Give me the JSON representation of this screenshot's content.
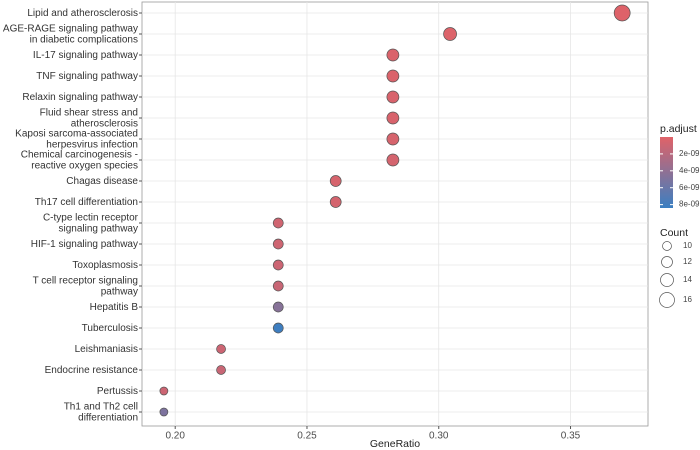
{
  "chart_data": {
    "type": "dot",
    "x_label": "GeneRatio",
    "categories": [
      "Lipid and atherosclerosis",
      "AGE-RAGE signaling pathway\nin diabetic complications",
      "IL-17 signaling pathway",
      "TNF signaling pathway",
      "Relaxin signaling pathway",
      "Fluid shear stress and\natherosclerosis",
      "Kaposi sarcoma-associated\nherpesvirus infection",
      "Chemical carcinogenesis -\nreactive oxygen species",
      "Chagas disease",
      "Th17 cell differentiation",
      "C-type lectin receptor\nsignaling pathway",
      "HIF-1 signaling pathway",
      "Toxoplasmosis",
      "T cell receptor signaling\npathway",
      "Hepatitis B",
      "Tuberculosis",
      "Leishmaniasis",
      "Endocrine resistance",
      "Pertussis",
      "Th1 and Th2 cell\ndifferentiation"
    ],
    "values": [
      0.3696,
      0.3043,
      0.2826,
      0.2826,
      0.2826,
      0.2826,
      0.2826,
      0.2826,
      0.2609,
      0.2609,
      0.2391,
      0.2391,
      0.2391,
      0.2391,
      0.2391,
      0.2391,
      0.2174,
      0.2174,
      0.1957,
      0.1957
    ],
    "count": [
      17,
      14,
      13,
      13,
      13,
      13,
      13,
      13,
      12,
      12,
      11,
      11,
      11,
      11,
      11,
      11,
      10,
      10,
      9,
      9
    ],
    "p_adjust": [
      1e-10,
      2e-10,
      3e-10,
      3e-10,
      4e-10,
      4e-10,
      5e-10,
      6e-10,
      5e-10,
      6e-10,
      8e-10,
      9e-10,
      1e-09,
      1.2e-09,
      4.5e-09,
      8.2e-09,
      1e-09,
      1.2e-09,
      1e-09,
      5e-09
    ],
    "xlim": [
      0.1874,
      0.3794
    ],
    "xticks": [
      {
        "value": 0.2,
        "label": "0.20"
      },
      {
        "value": 0.25,
        "label": "0.25"
      },
      {
        "value": 0.3,
        "label": "0.30"
      },
      {
        "value": 0.35,
        "label": "0.35"
      }
    ],
    "grid": true,
    "color_title": "p.adjust",
    "color_lim": [
      0,
      8.4e-09
    ],
    "color_low": "#e06268",
    "color_high": "#3a7fc2",
    "color_ticks": [
      {
        "value": 2e-09,
        "label": "2e-09"
      },
      {
        "value": 4e-09,
        "label": "4e-09"
      },
      {
        "value": 6e-09,
        "label": "6e-09"
      },
      {
        "value": 8e-09,
        "label": "8e-09"
      }
    ],
    "size_title": "Count",
    "size_ticks": [
      10,
      12,
      14,
      16
    ]
  }
}
